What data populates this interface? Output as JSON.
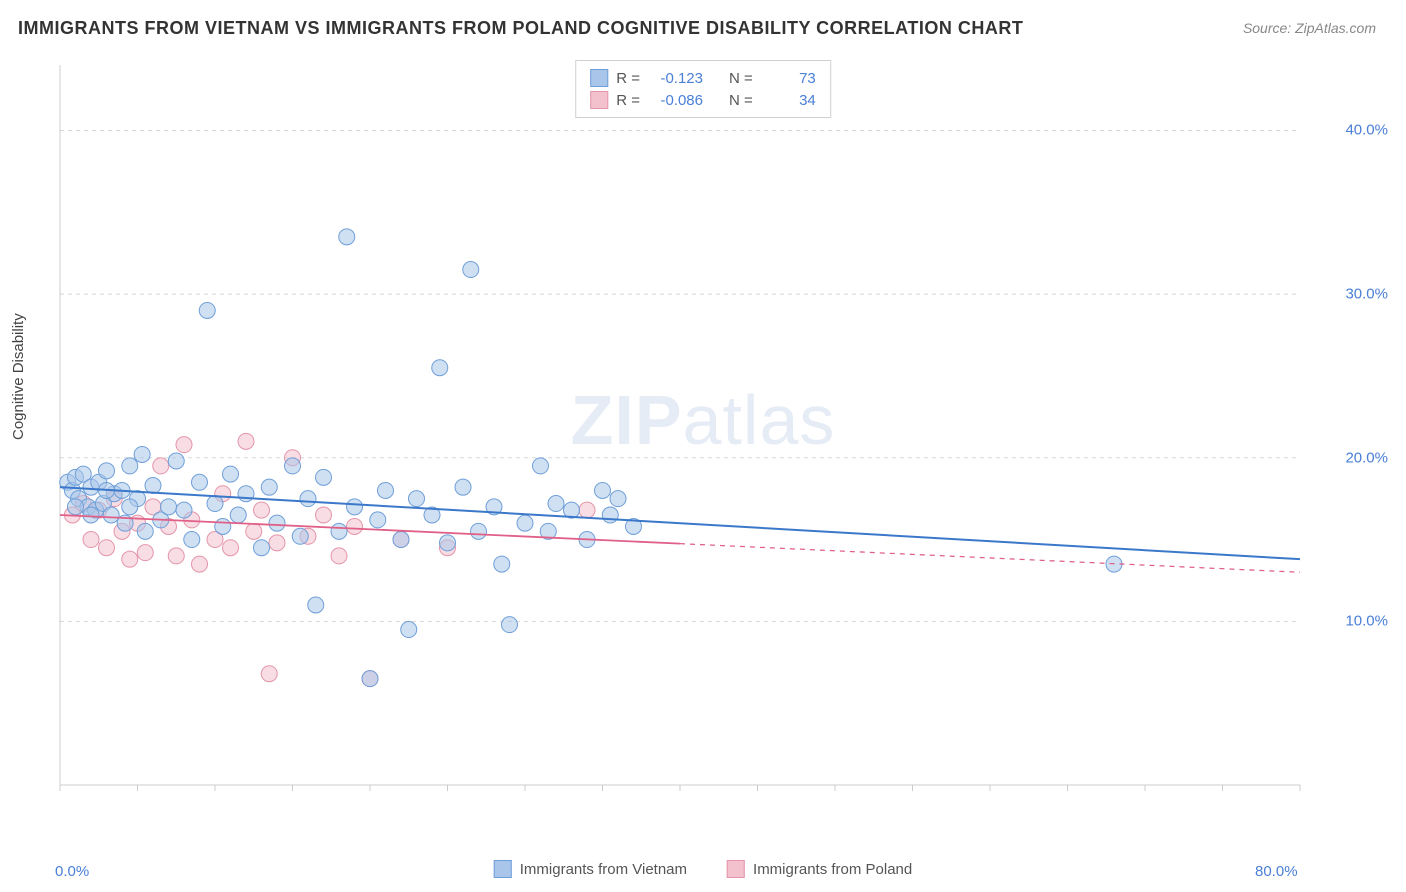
{
  "title": "IMMIGRANTS FROM VIETNAM VS IMMIGRANTS FROM POLAND COGNITIVE DISABILITY CORRELATION CHART",
  "source": "Source: ZipAtlas.com",
  "ylabel": "Cognitive Disability",
  "watermark": {
    "bold": "ZIP",
    "light": "atlas"
  },
  "chart": {
    "type": "scatter",
    "background_color": "#ffffff",
    "grid_color": "#d8d8d8",
    "axis_color": "#cccccc",
    "xlim": [
      0,
      80
    ],
    "ylim": [
      0,
      44
    ],
    "ytick_values": [
      10,
      20,
      30,
      40
    ],
    "ytick_labels": [
      "10.0%",
      "20.0%",
      "30.0%",
      "40.0%"
    ],
    "xtick_minor": [
      0,
      5,
      10,
      15,
      20,
      25,
      30,
      35,
      40,
      45,
      50,
      55,
      60,
      65,
      70,
      75,
      80
    ],
    "xtick_labels": {
      "0": "0.0%",
      "80": "80.0%"
    },
    "marker_radius": 8,
    "marker_opacity": 0.55,
    "series": [
      {
        "name": "Immigrants from Vietnam",
        "color_fill": "#a9c6ea",
        "color_stroke": "#6f9fd8",
        "R": "-0.123",
        "N": "73",
        "trend": {
          "x1": 0,
          "y1": 18.2,
          "x2": 80,
          "y2": 13.8,
          "color": "#3b78c9",
          "width": 2,
          "solid_until": 80
        },
        "points": [
          [
            0.5,
            18.5
          ],
          [
            0.8,
            18.0
          ],
          [
            1.0,
            18.8
          ],
          [
            1.2,
            17.5
          ],
          [
            1.5,
            19.0
          ],
          [
            1.8,
            17.0
          ],
          [
            2.0,
            18.2
          ],
          [
            2.3,
            16.8
          ],
          [
            2.5,
            18.5
          ],
          [
            2.8,
            17.2
          ],
          [
            3.0,
            19.2
          ],
          [
            3.3,
            16.5
          ],
          [
            3.5,
            17.8
          ],
          [
            4.0,
            18.0
          ],
          [
            4.2,
            16.0
          ],
          [
            4.5,
            19.5
          ],
          [
            5.0,
            17.5
          ],
          [
            5.3,
            20.2
          ],
          [
            5.5,
            15.5
          ],
          [
            6.0,
            18.3
          ],
          [
            6.5,
            16.2
          ],
          [
            7.0,
            17.0
          ],
          [
            7.5,
            19.8
          ],
          [
            8.0,
            16.8
          ],
          [
            8.5,
            15.0
          ],
          [
            9.0,
            18.5
          ],
          [
            9.5,
            29.0
          ],
          [
            10.0,
            17.2
          ],
          [
            10.5,
            15.8
          ],
          [
            11.0,
            19.0
          ],
          [
            11.5,
            16.5
          ],
          [
            12.0,
            17.8
          ],
          [
            13.0,
            14.5
          ],
          [
            13.5,
            18.2
          ],
          [
            14.0,
            16.0
          ],
          [
            15.0,
            19.5
          ],
          [
            15.5,
            15.2
          ],
          [
            16.0,
            17.5
          ],
          [
            16.5,
            11.0
          ],
          [
            17.0,
            18.8
          ],
          [
            18.0,
            15.5
          ],
          [
            18.5,
            33.5
          ],
          [
            19.0,
            17.0
          ],
          [
            20.0,
            6.5
          ],
          [
            20.5,
            16.2
          ],
          [
            21.0,
            18.0
          ],
          [
            22.0,
            15.0
          ],
          [
            22.5,
            9.5
          ],
          [
            23.0,
            17.5
          ],
          [
            24.0,
            16.5
          ],
          [
            24.5,
            25.5
          ],
          [
            25.0,
            14.8
          ],
          [
            26.0,
            18.2
          ],
          [
            26.5,
            31.5
          ],
          [
            27.0,
            15.5
          ],
          [
            28.0,
            17.0
          ],
          [
            28.5,
            13.5
          ],
          [
            29.0,
            9.8
          ],
          [
            30.0,
            16.0
          ],
          [
            31.0,
            19.5
          ],
          [
            31.5,
            15.5
          ],
          [
            32.0,
            17.2
          ],
          [
            33.0,
            16.8
          ],
          [
            34.0,
            15.0
          ],
          [
            35.0,
            18.0
          ],
          [
            35.5,
            16.5
          ],
          [
            36.0,
            17.5
          ],
          [
            37.0,
            15.8
          ],
          [
            68.0,
            13.5
          ],
          [
            1.0,
            17.0
          ],
          [
            2.0,
            16.5
          ],
          [
            3.0,
            18.0
          ],
          [
            4.5,
            17.0
          ]
        ]
      },
      {
        "name": "Immigrants from Poland",
        "color_fill": "#f2c1cd",
        "color_stroke": "#e495aa",
        "R": "-0.086",
        "N": "34",
        "trend": {
          "x1": 0,
          "y1": 16.5,
          "x2": 80,
          "y2": 13.0,
          "color": "#e06088",
          "width": 1.8,
          "solid_until": 40
        },
        "points": [
          [
            0.8,
            16.5
          ],
          [
            1.5,
            17.2
          ],
          [
            2.0,
            15.0
          ],
          [
            2.5,
            16.8
          ],
          [
            3.0,
            14.5
          ],
          [
            3.5,
            17.5
          ],
          [
            4.0,
            15.5
          ],
          [
            4.5,
            13.8
          ],
          [
            5.0,
            16.0
          ],
          [
            5.5,
            14.2
          ],
          [
            6.0,
            17.0
          ],
          [
            6.5,
            19.5
          ],
          [
            7.0,
            15.8
          ],
          [
            7.5,
            14.0
          ],
          [
            8.0,
            20.8
          ],
          [
            8.5,
            16.2
          ],
          [
            9.0,
            13.5
          ],
          [
            10.0,
            15.0
          ],
          [
            10.5,
            17.8
          ],
          [
            11.0,
            14.5
          ],
          [
            12.0,
            21.0
          ],
          [
            12.5,
            15.5
          ],
          [
            13.0,
            16.8
          ],
          [
            13.5,
            6.8
          ],
          [
            14.0,
            14.8
          ],
          [
            15.0,
            20.0
          ],
          [
            16.0,
            15.2
          ],
          [
            17.0,
            16.5
          ],
          [
            18.0,
            14.0
          ],
          [
            19.0,
            15.8
          ],
          [
            20.0,
            6.5
          ],
          [
            22.0,
            15.0
          ],
          [
            25.0,
            14.5
          ],
          [
            34.0,
            16.8
          ]
        ]
      }
    ]
  },
  "legend_top": {
    "r_label": "R =",
    "n_label": "N ="
  },
  "legend_bottom": [
    {
      "label": "Immigrants from Vietnam",
      "fill": "#a9c6ea",
      "stroke": "#6f9fd8"
    },
    {
      "label": "Immigrants from Poland",
      "fill": "#f2c1cd",
      "stroke": "#e495aa"
    }
  ]
}
